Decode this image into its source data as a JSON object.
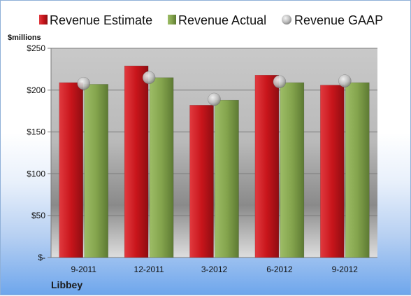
{
  "chart_data": {
    "type": "bar",
    "categories": [
      "9-2011",
      "12-2011",
      "3-2012",
      "6-2012",
      "9-2012"
    ],
    "series": [
      {
        "name": "Revenue Estimate",
        "kind": "bar",
        "color": "#c8151b",
        "values": [
          209,
          229,
          182,
          218,
          206
        ]
      },
      {
        "name": "Revenue Actual",
        "kind": "bar",
        "color": "#84a44d",
        "values": [
          207,
          215,
          188,
          209,
          209
        ]
      },
      {
        "name": "Revenue GAAP",
        "kind": "marker",
        "color": "#bfbfbf",
        "values": [
          208,
          215,
          189,
          210,
          211
        ]
      }
    ],
    "ylabel": "$millions",
    "ylim": [
      0,
      250
    ],
    "yticks": [
      0,
      50,
      100,
      150,
      200,
      250
    ],
    "ytick_labels": [
      "$-",
      "$50",
      "$100",
      "$150",
      "$200",
      "$250"
    ],
    "grid": true,
    "legend_position": "top",
    "footer_label": "Libbey"
  }
}
